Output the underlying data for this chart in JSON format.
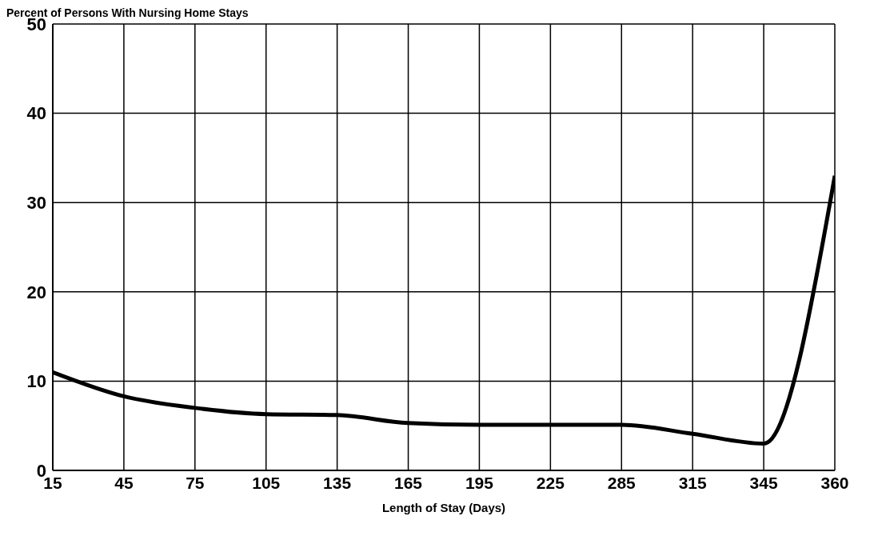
{
  "chart_data": {
    "type": "line",
    "ylabel": "Percent of Persons With Nursing Home Stays",
    "xlabel": "Length of Stay (Days)",
    "categories": [
      "15",
      "45",
      "75",
      "105",
      "135",
      "165",
      "195",
      "225",
      "285",
      "315",
      "345",
      "360"
    ],
    "series": [
      {
        "color": "#000000",
        "values": [
          11,
          8.3,
          7,
          6.3,
          6.2,
          5.3,
          5.1,
          5.1,
          5.1,
          4.1,
          3,
          33
        ]
      }
    ],
    "ylim": [
      0,
      50
    ],
    "yticks": [
      0,
      10,
      20,
      30,
      40,
      50
    ],
    "grid": true,
    "marker": "none",
    "line_style": "solid"
  }
}
